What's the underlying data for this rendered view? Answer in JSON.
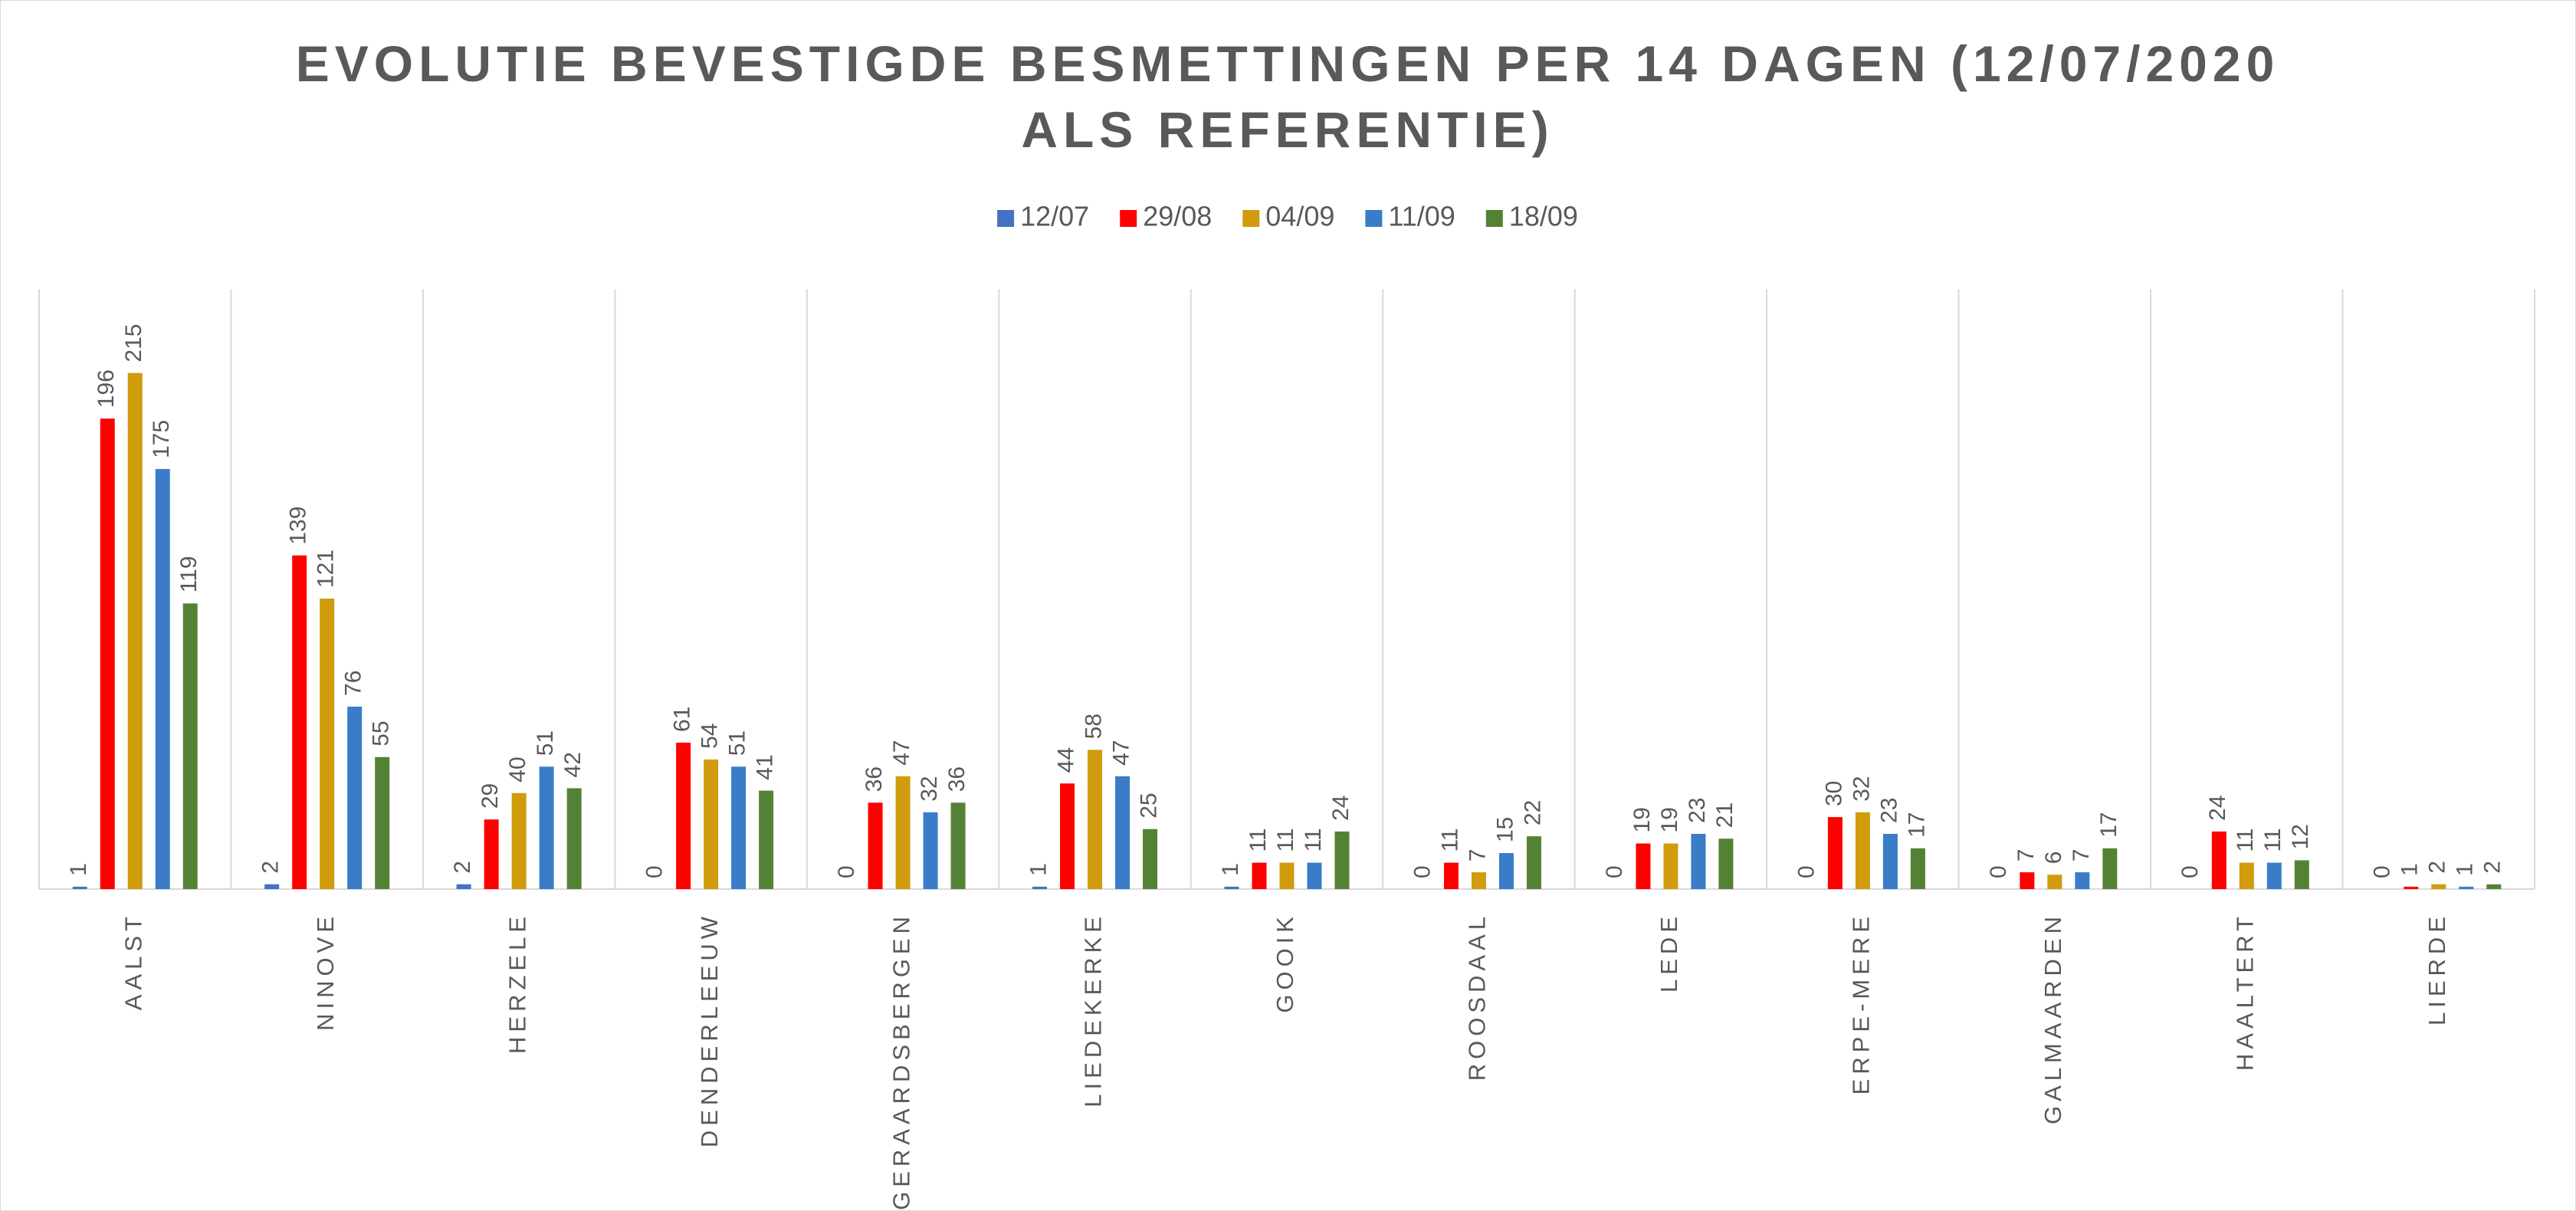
{
  "chart_data": {
    "type": "bar",
    "title": "EVOLUTIE BEVESTIGDE BESMETTINGEN PER 14 DAGEN (12/07/2020 ALS REFERENTIE)",
    "categories": [
      "AALST",
      "NINOVE",
      "HERZELE",
      "DENDERLEEUW",
      "GERAARDSBERGEN",
      "LIEDEKERKE",
      "GOOIK",
      "ROOSDAAL",
      "LEDE",
      "ERPE-MERE",
      "GALMAARDEN",
      "HAALTERT",
      "LIERDE"
    ],
    "series": [
      {
        "name": "12/07",
        "color": "#4472c4",
        "values": [
          1,
          2,
          2,
          0,
          0,
          1,
          1,
          0,
          0,
          0,
          0,
          0,
          0
        ]
      },
      {
        "name": "29/08",
        "color": "#ff0000",
        "values": [
          196,
          139,
          29,
          61,
          36,
          44,
          11,
          11,
          19,
          30,
          7,
          24,
          1
        ]
      },
      {
        "name": "04/09",
        "color": "#d09c0c",
        "values": [
          215,
          121,
          40,
          54,
          47,
          58,
          11,
          7,
          19,
          32,
          6,
          11,
          2
        ]
      },
      {
        "name": "11/09",
        "color": "#3a7cc8",
        "values": [
          175,
          76,
          51,
          51,
          32,
          47,
          11,
          15,
          23,
          23,
          7,
          11,
          1
        ]
      },
      {
        "name": "18/09",
        "color": "#548235",
        "values": [
          119,
          55,
          42,
          41,
          36,
          25,
          24,
          22,
          21,
          17,
          17,
          12,
          2
        ]
      }
    ],
    "ylim": [
      0,
      250
    ],
    "legend": "top"
  }
}
